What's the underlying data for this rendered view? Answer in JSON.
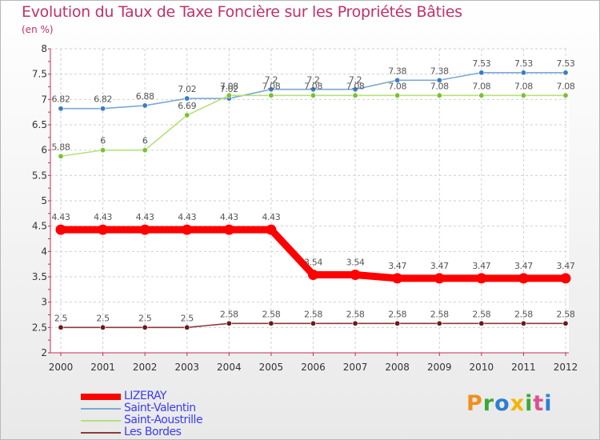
{
  "chart_data": {
    "type": "line",
    "title": "Evolution du Taux de Taxe Foncière sur les Propriétés Bâties",
    "subtitle": "(en %)",
    "xlabel": "",
    "ylabel": "",
    "ylim": [
      2,
      8
    ],
    "yticks": [
      "2",
      "2.5",
      "3",
      "3.5",
      "4",
      "4.5",
      "5",
      "5.5",
      "6",
      "6.5",
      "7",
      "7.5",
      "8"
    ],
    "ytick_values": [
      2,
      2.5,
      3,
      3.5,
      4,
      4.5,
      5,
      5.5,
      6,
      6.5,
      7,
      7.5,
      8
    ],
    "categories": [
      "2000",
      "2001",
      "2002",
      "2003",
      "2004",
      "2005",
      "2006",
      "2007",
      "2008",
      "2009",
      "2010",
      "2011",
      "2012"
    ],
    "grid": true,
    "series": [
      {
        "name": "Saint-Valentin",
        "color": "#7aa8d4",
        "marker_color": "#3a7ec4",
        "values": [
          6.82,
          6.82,
          6.88,
          7.02,
          7.02,
          7.2,
          7.2,
          7.2,
          7.38,
          7.38,
          7.53,
          7.53,
          7.53
        ],
        "labels": [
          "6.82",
          "6.82",
          "6.88",
          "7.02",
          "7.02",
          "7.2",
          "7.2",
          "7.2",
          "7.38",
          "7.38",
          "7.53",
          "7.53",
          "7.53"
        ]
      },
      {
        "name": "Saint-Aoustrille",
        "color": "#b6e07a",
        "marker_color": "#7cc030",
        "values": [
          5.88,
          6,
          6,
          6.69,
          7.08,
          7.08,
          7.08,
          7.08,
          7.08,
          7.08,
          7.08,
          7.08,
          7.08
        ],
        "labels": [
          "5.88",
          "6",
          "6",
          "6.69",
          "7.08",
          "7.08",
          "7.08",
          "7.08",
          "7.08",
          "7.08",
          "7.08",
          "7.08",
          "7.08"
        ]
      },
      {
        "name": "LIZERAY",
        "color": "#ff0000",
        "marker_color": "#ff0000",
        "values": [
          4.43,
          4.43,
          4.43,
          4.43,
          4.43,
          4.43,
          3.54,
          3.54,
          3.47,
          3.47,
          3.47,
          3.47,
          3.47
        ],
        "labels": [
          "4.43",
          "4.43",
          "4.43",
          "4.43",
          "4.43",
          "4.43",
          "3.54",
          "3.54",
          "3.47",
          "3.47",
          "3.47",
          "3.47",
          "3.47"
        ]
      },
      {
        "name": "Les Bordes",
        "color": "#8a3a3a",
        "marker_color": "#6a1a1a",
        "values": [
          2.5,
          2.5,
          2.5,
          2.5,
          2.58,
          2.58,
          2.58,
          2.58,
          2.58,
          2.58,
          2.58,
          2.58,
          2.58
        ],
        "labels": [
          "2.5",
          "2.5",
          "2.5",
          "2.5",
          "2.58",
          "2.58",
          "2.58",
          "2.58",
          "2.58",
          "2.58",
          "2.58",
          "2.58",
          "2.58"
        ]
      }
    ],
    "legend": {
      "placement": "bottom-left",
      "entries": [
        "LIZERAY",
        "Saint-Valentin",
        "Saint-Aoustrille",
        "Les Bordes"
      ]
    }
  },
  "logo": {
    "text": "Proxiti"
  }
}
